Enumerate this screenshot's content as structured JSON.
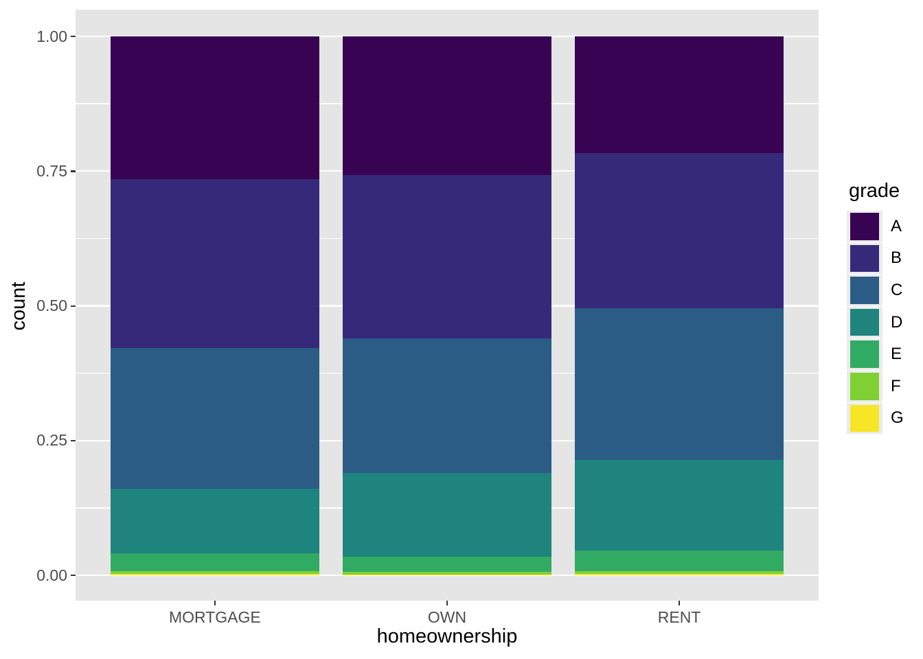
{
  "chart_data": {
    "type": "bar",
    "stacked": true,
    "normalized": true,
    "xlabel": "homeownership",
    "ylabel": "count",
    "categories": [
      "MORTGAGE",
      "OWN",
      "RENT"
    ],
    "series": [
      {
        "name": "A",
        "color": "#380352",
        "values": [
          0.265,
          0.257,
          0.217
        ]
      },
      {
        "name": "B",
        "color": "#36297A",
        "values": [
          0.313,
          0.304,
          0.288
        ]
      },
      {
        "name": "C",
        "color": "#2B5C85",
        "values": [
          0.261,
          0.249,
          0.281
        ]
      },
      {
        "name": "D",
        "color": "#1F837E",
        "values": [
          0.12,
          0.155,
          0.168
        ]
      },
      {
        "name": "E",
        "color": "#31AB63",
        "values": [
          0.033,
          0.029,
          0.038
        ]
      },
      {
        "name": "F",
        "color": "#7FD133",
        "values": [
          0.005,
          0.005,
          0.005
        ]
      },
      {
        "name": "G",
        "color": "#F7E625",
        "values": [
          0.003,
          0.001,
          0.003
        ]
      }
    ],
    "ylim": [
      0,
      1
    ],
    "y_ticks": [
      {
        "value": 0.0,
        "label": "0.00"
      },
      {
        "value": 0.25,
        "label": "0.25"
      },
      {
        "value": 0.5,
        "label": "0.50"
      },
      {
        "value": 0.75,
        "label": "0.75"
      },
      {
        "value": 1.0,
        "label": "1.00"
      }
    ],
    "y_minor": [
      0.125,
      0.375,
      0.625,
      0.875
    ],
    "legend": {
      "title": "grade",
      "position": "right"
    },
    "grid": true,
    "colors": {
      "panel_bg": "#E5E5E5",
      "grid": "#FFFFFF",
      "tick": "#333333",
      "tick_label": "#4D4D4D",
      "axis_title": "#000000",
      "legend_chip_bg": "#EBEBEB"
    }
  }
}
